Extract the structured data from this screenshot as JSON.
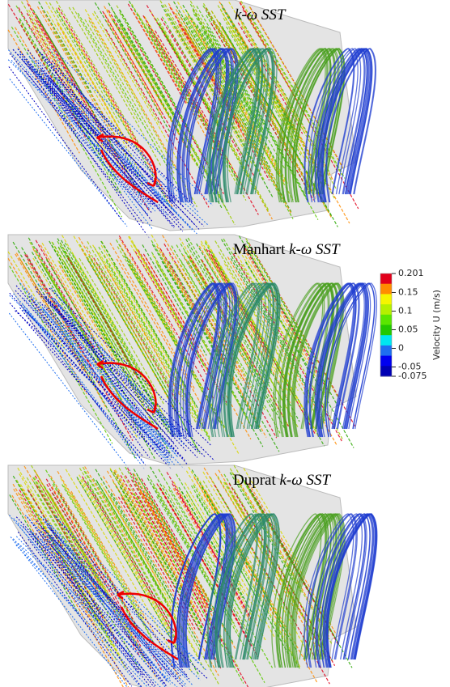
{
  "panels": [
    {
      "prefix": null,
      "model": "k-ω SST"
    },
    {
      "prefix": "Manhart",
      "model": "k-ω SST"
    },
    {
      "prefix": "Duprat",
      "model": "k-ω SST"
    }
  ],
  "colorbar": {
    "label": "Velocity U (m/s)",
    "lim": [
      -0.075,
      0.201
    ],
    "ticks": [
      0.201,
      0.15,
      0.1,
      0.05,
      0,
      -0.05,
      -0.075
    ],
    "colors": [
      "#e2001a",
      "#ff8c00",
      "#f5f500",
      "#b4f000",
      "#5ae600",
      "#22c800",
      "#00e6f0",
      "#1e6ef0",
      "#0000f0",
      "#0000b4"
    ]
  }
}
